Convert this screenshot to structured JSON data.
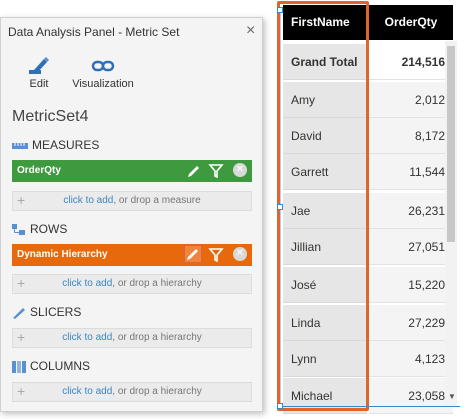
{
  "panel": {
    "title": "Data Analysis Panel - Metric Set",
    "close_label": "×",
    "tools": [
      {
        "label": "Edit",
        "icon": "pencil-icon"
      },
      {
        "label": "Visualization",
        "icon": "link-icon"
      }
    ],
    "metricset_name": "MetricSet4",
    "measures": {
      "header": "MEASURES",
      "pill": {
        "label": "OrderQty",
        "color": "#3f9a3f"
      },
      "drop_link": "click to add",
      "drop_text": ", or drop a measure"
    },
    "rows": {
      "header": "ROWS",
      "pill": {
        "label": "Dynamic Hierarchy",
        "color": "#e8690b"
      },
      "drop_link": "click to add",
      "drop_text": ", or drop a hierarchy"
    },
    "slicers": {
      "header": "SLICERS",
      "drop_link": "click to add",
      "drop_text": ", or drop a hierarchy"
    },
    "columns": {
      "header": "COLUMNS",
      "drop_link": "click to add",
      "drop_text": ", or drop a hierarchy"
    }
  },
  "table": {
    "headers": [
      "FirstName",
      "OrderQty"
    ],
    "rows": [
      {
        "name": "Grand Total",
        "qty": "214,516"
      },
      {
        "name": "Amy",
        "qty": "2,012"
      },
      {
        "name": "David",
        "qty": "8,172"
      },
      {
        "name": "Garrett",
        "qty": "11,544"
      },
      {
        "name": "Jae",
        "qty": "26,231"
      },
      {
        "name": "Jillian",
        "qty": "27,051"
      },
      {
        "name": "José",
        "qty": "15,220"
      },
      {
        "name": "Linda",
        "qty": "27,229"
      },
      {
        "name": "Lynn",
        "qty": "4,123"
      },
      {
        "name": "Michael",
        "qty": "23,058"
      }
    ]
  },
  "colors": {
    "highlight": "#e0642c",
    "selection": "#3a87c9"
  }
}
